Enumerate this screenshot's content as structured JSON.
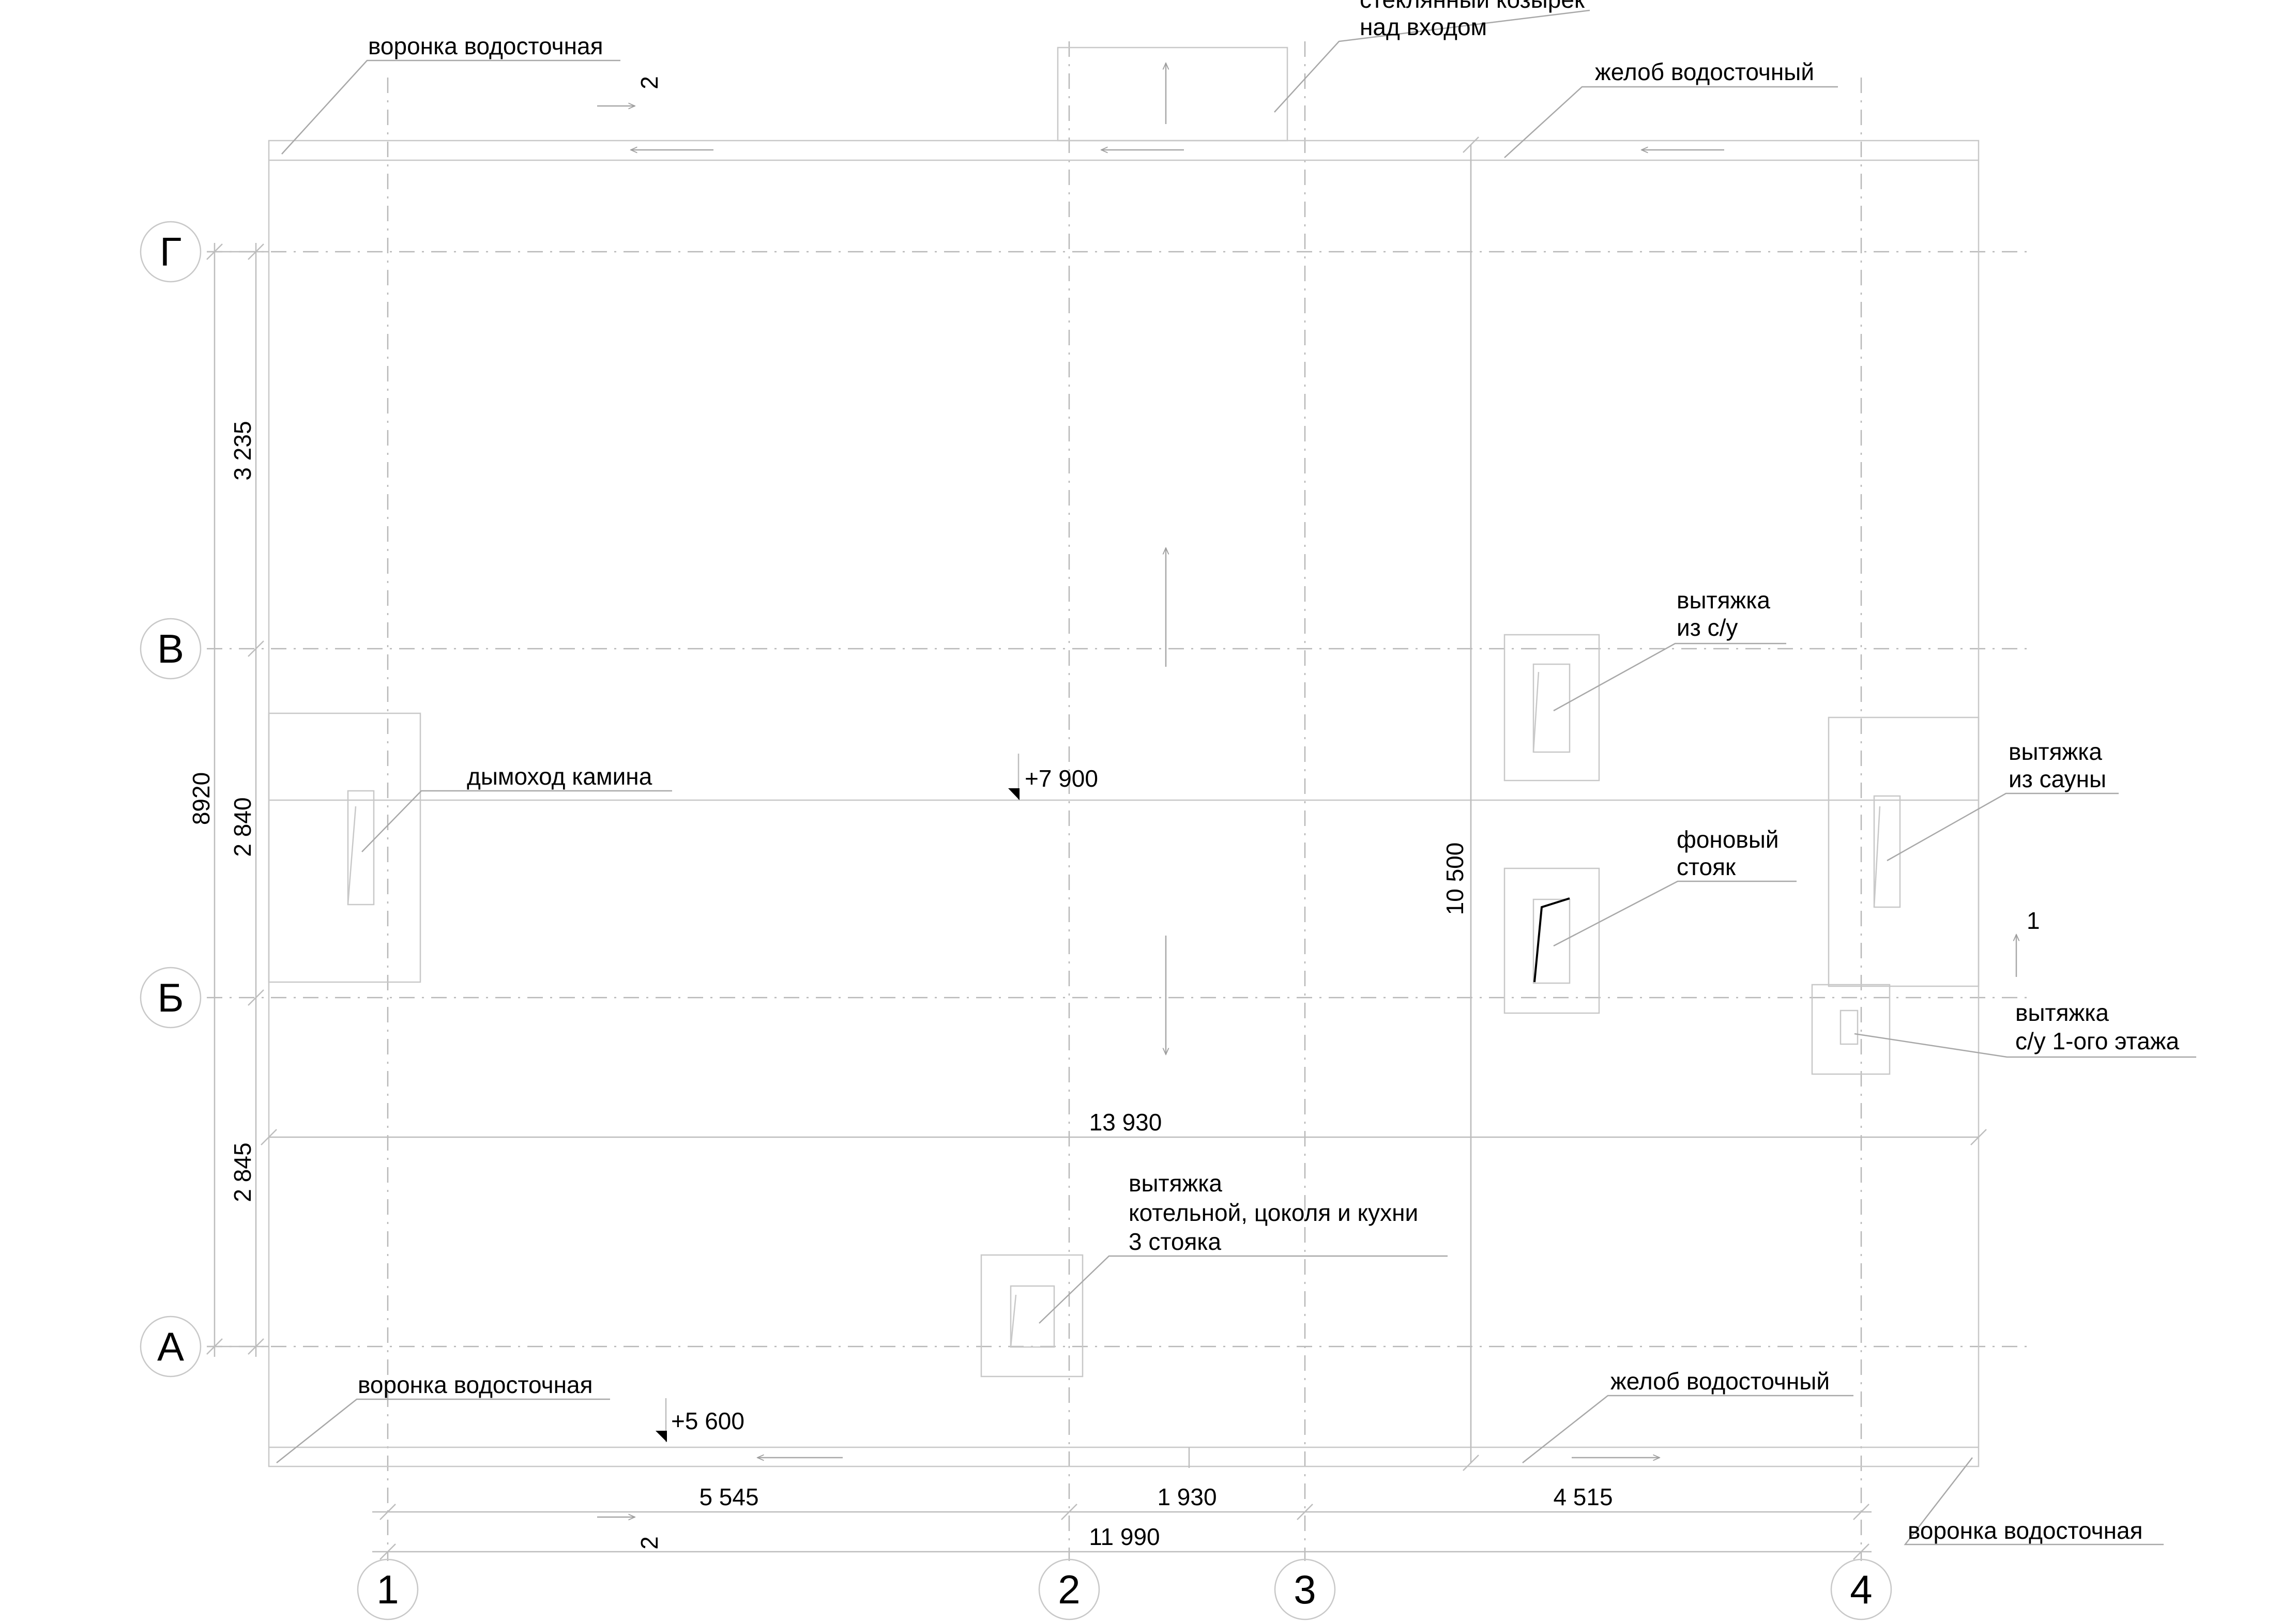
{
  "axes": {
    "vertical": [
      "1",
      "2",
      "3",
      "4"
    ],
    "horizontal": [
      "Г",
      "В",
      "Б",
      "А"
    ]
  },
  "dimensions": {
    "bottom": [
      "5 545",
      "1 930",
      "4 515"
    ],
    "bottom_total": "11 990",
    "left": [
      "3 235",
      "2 840",
      "2 845"
    ],
    "left_total": "8920",
    "inner_width": "13 930",
    "inner_height": "10 500"
  },
  "levels": {
    "roof": "+7 900",
    "eave": "+5 600"
  },
  "slope_marks": {
    "top": "2",
    "bottom": "2",
    "right": "1"
  },
  "labels": {
    "funnel_top_left": "воронка водосточная",
    "canopy_line1": "стеклянный козырек",
    "canopy_line2": "над входом",
    "gutter_top": "желоб водосточный",
    "wc_line1": "вытяжка",
    "wc_line2": "из с/у",
    "chimney": "дымоход камина",
    "sauna_line1": "вытяжка",
    "sauna_line2": "из сауны",
    "riser_line1": "фоновый",
    "riser_line2": "стояк",
    "wc1_line1": "вытяжка",
    "wc1_line2": "с/у 1-ого этажа",
    "boiler_line1": "вытяжка",
    "boiler_line2": "котельной, цоколя и кухни",
    "boiler_line3": "3 стояка",
    "funnel_bottom_left": "воронка водосточная",
    "gutter_bottom": "желоб водосточный",
    "funnel_bottom_right": "воронка водосточная"
  }
}
